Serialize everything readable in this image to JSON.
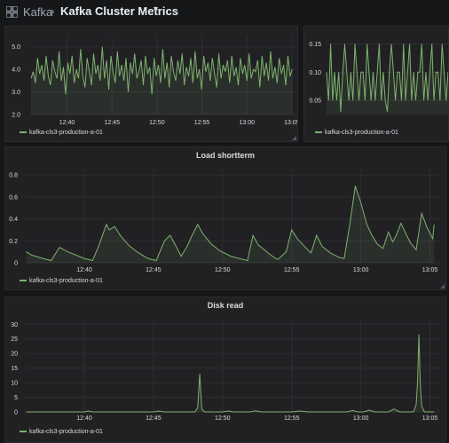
{
  "header": {
    "breadcrumb_root": "Kafka",
    "separator": "›",
    "dashboard_title": "Kafka Cluster Metrics",
    "caret": "▾",
    "apps_icon": "grid-icon"
  },
  "colors": {
    "series": "#7eb26d",
    "grid": "#2f2f32",
    "panel": "#212124",
    "background": "#161719"
  },
  "panels": [
    {
      "id": "top-left",
      "title": "",
      "legend": "kafka-cls3-production-a-01",
      "chart_data": {
        "type": "line",
        "title": "",
        "y_ticks": [
          "5.0",
          "4.0",
          "3.0",
          "2.0"
        ],
        "ylim": [
          2.0,
          5.5
        ],
        "x_ticks": [
          "12:40",
          "12:45",
          "12:50",
          "12:55",
          "13:00",
          "13:05"
        ],
        "x_tick_minutes": [
          40,
          45,
          50,
          55,
          60,
          65
        ],
        "xlim_minutes": [
          36,
          65.5
        ],
        "series": [
          {
            "name": "kafka-cls3-production-a-01",
            "x_minutes": [
              36.0,
              36.24,
              36.48,
              36.72,
              36.96,
              37.2,
              37.44,
              37.68,
              37.92,
              38.16,
              38.4,
              38.64,
              38.88,
              39.12,
              39.36,
              39.6,
              39.84,
              40.08,
              40.32,
              40.56,
              40.8,
              41.04,
              41.28,
              41.52,
              41.76,
              42.0,
              42.24,
              42.48,
              42.72,
              42.96,
              43.2,
              43.44,
              43.68,
              43.92,
              44.16,
              44.4,
              44.64,
              44.88,
              45.12,
              45.36,
              45.6,
              45.84,
              46.08,
              46.32,
              46.56,
              46.8,
              47.04,
              47.28,
              47.52,
              47.76,
              48.0,
              48.24,
              48.48,
              48.72,
              48.96,
              49.2,
              49.44,
              49.68,
              49.92,
              50.16,
              50.4,
              50.64,
              50.88,
              51.12,
              51.36,
              51.6,
              51.84,
              52.08,
              52.32,
              52.56,
              52.8,
              53.04,
              53.28,
              53.52,
              53.76,
              54.0,
              54.24,
              54.48,
              54.72,
              54.96,
              55.2,
              55.44,
              55.68,
              55.92,
              56.16,
              56.4,
              56.64,
              56.88,
              57.12,
              57.36,
              57.6,
              57.84,
              58.08,
              58.32,
              58.56,
              58.8,
              59.04,
              59.28,
              59.52,
              59.76,
              60.0,
              60.24,
              60.48,
              60.72,
              60.96,
              61.2,
              61.44,
              61.68,
              61.92,
              62.16,
              62.4,
              62.64,
              62.88,
              63.12,
              63.36,
              63.6,
              63.84,
              64.08,
              64.32,
              64.56,
              64.8,
              65.04
            ],
            "values": [
              3.6,
              3.9,
              3.4,
              4.5,
              3.8,
              4.2,
              3.5,
              4.6,
              3.7,
              3.3,
              4.4,
              3.9,
              3.6,
              4.8,
              3.5,
              4.1,
              2.9,
              4.3,
              3.8,
              4.6,
              3.4,
              4.0,
              3.6,
              4.9,
              3.7,
              3.2,
              4.5,
              3.9,
              3.3,
              4.7,
              3.8,
              4.2,
              3.5,
              5.0,
              3.6,
              4.4,
              3.1,
              4.6,
              3.9,
              3.4,
              4.8,
              3.7,
              4.2,
              3.5,
              4.5,
              3.0,
              4.3,
              3.8,
              4.7,
              3.6,
              3.9,
              4.4,
              3.3,
              4.6,
              3.8,
              4.1,
              2.9,
              4.5,
              3.7,
              4.2,
              3.4,
              4.9,
              3.6,
              4.3,
              3.2,
              4.6,
              3.9,
              3.5,
              4.4,
              3.8,
              4.7,
              3.3,
              4.1,
              3.7,
              4.5,
              3.4,
              4.8,
              3.6,
              4.0,
              3.1,
              4.6,
              3.9,
              4.3,
              3.5,
              4.5,
              3.8,
              3.2,
              4.7,
              3.6,
              4.2,
              3.9,
              4.4,
              3.4,
              4.6,
              3.7,
              4.1,
              3.3,
              4.5,
              3.8,
              4.2,
              3.5,
              4.7,
              3.6,
              4.0,
              3.9,
              4.4,
              3.2,
              4.6,
              3.7,
              4.3,
              3.5,
              4.8,
              3.6,
              4.1,
              3.4,
              4.5,
              3.8,
              4.2,
              3.3,
              4.6,
              3.7,
              4.0
            ]
          }
        ]
      }
    },
    {
      "id": "top-right",
      "title": "",
      "legend": "kafka-cls3-production-a-01",
      "chart_data": {
        "type": "line",
        "title": "",
        "y_ticks": [
          "0.15",
          "0.10",
          "0.05"
        ],
        "ylim": [
          0.025,
          0.165
        ],
        "x_ticks": [],
        "series": [
          {
            "name": "kafka-cls3-production-a-01",
            "values": [
              0.1,
              0.05,
              0.15,
              0.05,
              0.1,
              0.05,
              0.1,
              0.03,
              0.1,
              0.15,
              0.1,
              0.05,
              0.1,
              0.05,
              0.15,
              0.1,
              0.05,
              0.1,
              0.1,
              0.05,
              0.15,
              0.1,
              0.05,
              0.1,
              0.05,
              0.1,
              0.15,
              0.05,
              0.1,
              0.05,
              0.03,
              0.1,
              0.15,
              0.1,
              0.05,
              0.1,
              0.1,
              0.05,
              0.15,
              0.05,
              0.1,
              0.15,
              0.05,
              0.1,
              0.05,
              0.1,
              0.1,
              0.15,
              0.05,
              0.1,
              0.05,
              0.1,
              0.15,
              0.05,
              0.1,
              0.1,
              0.05,
              0.15,
              0.1,
              0.05,
              0.1
            ]
          }
        ]
      }
    },
    {
      "id": "load-shortterm",
      "title": "Load shortterm",
      "legend": "kafka-cls3-production-a-01",
      "chart_data": {
        "type": "line",
        "title": "Load shortterm",
        "y_ticks": [
          "0.8",
          "0.6",
          "0.4",
          "0.2",
          "0"
        ],
        "ylim": [
          0,
          0.85
        ],
        "x_ticks": [
          "12:40",
          "12:45",
          "12:50",
          "12:55",
          "13:00",
          "13:05"
        ],
        "x_tick_minutes": [
          40,
          45,
          50,
          55,
          60,
          65
        ],
        "xlim_minutes": [
          35.7,
          65.8
        ],
        "series": [
          {
            "name": "kafka-cls3-production-a-01",
            "points": [
              [
                35.8,
                0.1
              ],
              [
                36.2,
                0.07
              ],
              [
                37.0,
                0.04
              ],
              [
                37.6,
                0.02
              ],
              [
                38.2,
                0.14
              ],
              [
                38.8,
                0.1
              ],
              [
                39.6,
                0.06
              ],
              [
                40.0,
                0.04
              ],
              [
                40.6,
                0.02
              ],
              [
                41.0,
                0.14
              ],
              [
                41.6,
                0.35
              ],
              [
                41.8,
                0.3
              ],
              [
                42.2,
                0.33
              ],
              [
                42.6,
                0.25
              ],
              [
                43.2,
                0.16
              ],
              [
                43.8,
                0.1
              ],
              [
                44.2,
                0.07
              ],
              [
                44.6,
                0.04
              ],
              [
                45.2,
                0.02
              ],
              [
                45.8,
                0.2
              ],
              [
                46.2,
                0.25
              ],
              [
                46.6,
                0.16
              ],
              [
                47.0,
                0.06
              ],
              [
                47.4,
                0.14
              ],
              [
                47.8,
                0.25
              ],
              [
                48.2,
                0.35
              ],
              [
                48.6,
                0.26
              ],
              [
                49.2,
                0.17
              ],
              [
                49.8,
                0.11
              ],
              [
                50.6,
                0.06
              ],
              [
                51.2,
                0.04
              ],
              [
                51.8,
                0.02
              ],
              [
                52.2,
                0.25
              ],
              [
                52.6,
                0.16
              ],
              [
                53.2,
                0.1
              ],
              [
                53.6,
                0.06
              ],
              [
                54.0,
                0.03
              ],
              [
                54.6,
                0.1
              ],
              [
                55.0,
                0.3
              ],
              [
                55.4,
                0.22
              ],
              [
                56.0,
                0.14
              ],
              [
                56.4,
                0.09
              ],
              [
                56.8,
                0.25
              ],
              [
                57.2,
                0.15
              ],
              [
                57.8,
                0.09
              ],
              [
                58.4,
                0.05
              ],
              [
                58.8,
                0.04
              ],
              [
                59.2,
                0.35
              ],
              [
                59.6,
                0.7
              ],
              [
                60.0,
                0.55
              ],
              [
                60.4,
                0.36
              ],
              [
                60.8,
                0.25
              ],
              [
                61.2,
                0.17
              ],
              [
                61.6,
                0.13
              ],
              [
                62.0,
                0.28
              ],
              [
                62.3,
                0.19
              ],
              [
                62.6,
                0.26
              ],
              [
                62.9,
                0.36
              ],
              [
                63.2,
                0.28
              ],
              [
                63.6,
                0.18
              ],
              [
                64.0,
                0.12
              ],
              [
                64.4,
                0.45
              ],
              [
                64.8,
                0.32
              ],
              [
                65.2,
                0.22
              ],
              [
                65.3,
                0.35
              ]
            ]
          }
        ]
      }
    },
    {
      "id": "disk-read",
      "title": "Disk read",
      "legend": "kafka-cls3-production-a-01",
      "chart_data": {
        "type": "line",
        "title": "Disk read",
        "y_ticks": [
          "30",
          "25",
          "20",
          "15",
          "10",
          "5",
          "0"
        ],
        "ylim": [
          0,
          31
        ],
        "x_ticks": [
          "12:40",
          "12:45",
          "12:50",
          "12:55",
          "13:00",
          "13:05"
        ],
        "x_tick_minutes": [
          40,
          45,
          50,
          55,
          60,
          65
        ],
        "xlim_minutes": [
          35.7,
          65.8
        ],
        "series": [
          {
            "name": "kafka-cls3-production-a-01",
            "points": [
              [
                35.8,
                0
              ],
              [
                40.0,
                0
              ],
              [
                40.3,
                0.3
              ],
              [
                40.6,
                0
              ],
              [
                45.0,
                0
              ],
              [
                45.4,
                0.3
              ],
              [
                45.8,
                0
              ],
              [
                48.0,
                0
              ],
              [
                48.2,
                1.5
              ],
              [
                48.35,
                13
              ],
              [
                48.5,
                1.0
              ],
              [
                48.7,
                0
              ],
              [
                50.0,
                0
              ],
              [
                50.4,
                0.3
              ],
              [
                50.8,
                0
              ],
              [
                52.0,
                0
              ],
              [
                52.4,
                0.4
              ],
              [
                52.8,
                0
              ],
              [
                55.0,
                0
              ],
              [
                55.6,
                0.3
              ],
              [
                56.2,
                0
              ],
              [
                59.0,
                0
              ],
              [
                59.4,
                0.5
              ],
              [
                59.8,
                0
              ],
              [
                60.2,
                0
              ],
              [
                60.6,
                0.6
              ],
              [
                61.0,
                0
              ],
              [
                62.0,
                0
              ],
              [
                62.4,
                1.0
              ],
              [
                62.8,
                0
              ],
              [
                63.8,
                0
              ],
              [
                64.0,
                2.5
              ],
              [
                64.1,
                10
              ],
              [
                64.2,
                26.5
              ],
              [
                64.3,
                10
              ],
              [
                64.4,
                2
              ],
              [
                64.6,
                0
              ],
              [
                65.3,
                0
              ]
            ]
          }
        ]
      }
    }
  ]
}
